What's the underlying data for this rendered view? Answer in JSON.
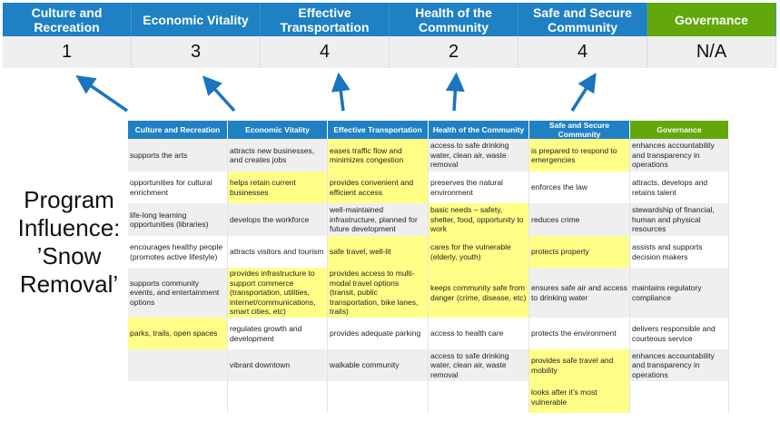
{
  "categories": [
    "Culture and Recreation",
    "Economic Vitality",
    "Effective Transportation",
    "Health of the Community",
    "Safe and Secure Community",
    "Governance"
  ],
  "scores": [
    "1",
    "3",
    "4",
    "2",
    "4",
    "N/A"
  ],
  "colors": {
    "header_blue": "#1f80c3",
    "governance_green": "#62a80b",
    "highlight_yellow": "#ffff88",
    "arrow_blue": "#1a74c0"
  },
  "label": [
    "Program",
    "Influence:",
    "’Snow",
    "Removal’"
  ],
  "table": {
    "headers": [
      "Culture and Recreation",
      "Economic Vitality",
      "Effective Transportation",
      "Health of the Community",
      "Safe and Secure Community",
      "Governance"
    ],
    "rows": [
      [
        "supports the arts",
        "attracts new businesses, and creates jobs",
        "eases traffic flow and minimizes congestion",
        "access to safe drinking water, clean air, waste removal",
        "is prepared to respond to emergencies",
        "enhances accountability and transparency in operations"
      ],
      [
        "opportunities for cultural enrichment",
        "helps retain current businesses",
        "provides convenient and efficient access",
        "preserves the natural environment",
        "enforces the law",
        "attracts, develops and retains talent"
      ],
      [
        "life-long learning opportunities (libraries)",
        "develops the workforce",
        "well-maintained infrastructure, planned for future development",
        "basic needs – safety, shelter, food, opportunity to work",
        "reduces crime",
        "stewardship of financial, human and physical resources"
      ],
      [
        "encourages healthy people (promotes active lifestyle)",
        "attracts visitors and tourism",
        "safe travel, well-lit",
        "cares for the vulnerable (elderly, youth)",
        "protects property",
        "assists and supports decision makers"
      ],
      [
        "supports community events, and entertainment options",
        "provides infrastructure to support commerce (transportation, utilities, internet/communications, smart cities, etc)",
        "provides access to multi-modal travel options (transit, public transportation, bike lanes, trails)",
        "keeps community safe from danger (crime, disease, etc)",
        "ensures safe air and access to drinking water",
        "maintains regulatory compliance"
      ],
      [
        "parks, trails, open spaces",
        "regulates growth and development",
        "provides adequate parking",
        "access to health care",
        "protects the environment",
        "delivers responsible and courteous service"
      ],
      [
        "",
        "vibrant downtown",
        "walkable community",
        "access to safe drinking water, clean air, waste removal",
        "provides safe travel and mobility",
        "enhances accountability and transparency in operations"
      ],
      [
        "",
        "",
        "",
        "",
        "looks after it’s most vulnerable",
        ""
      ]
    ],
    "highlighted": [
      [
        2,
        4
      ],
      [
        1,
        2
      ],
      [
        3
      ],
      [
        2,
        3,
        4
      ],
      [
        1,
        2,
        3
      ],
      [
        0
      ],
      [
        4
      ],
      [
        4
      ]
    ]
  }
}
